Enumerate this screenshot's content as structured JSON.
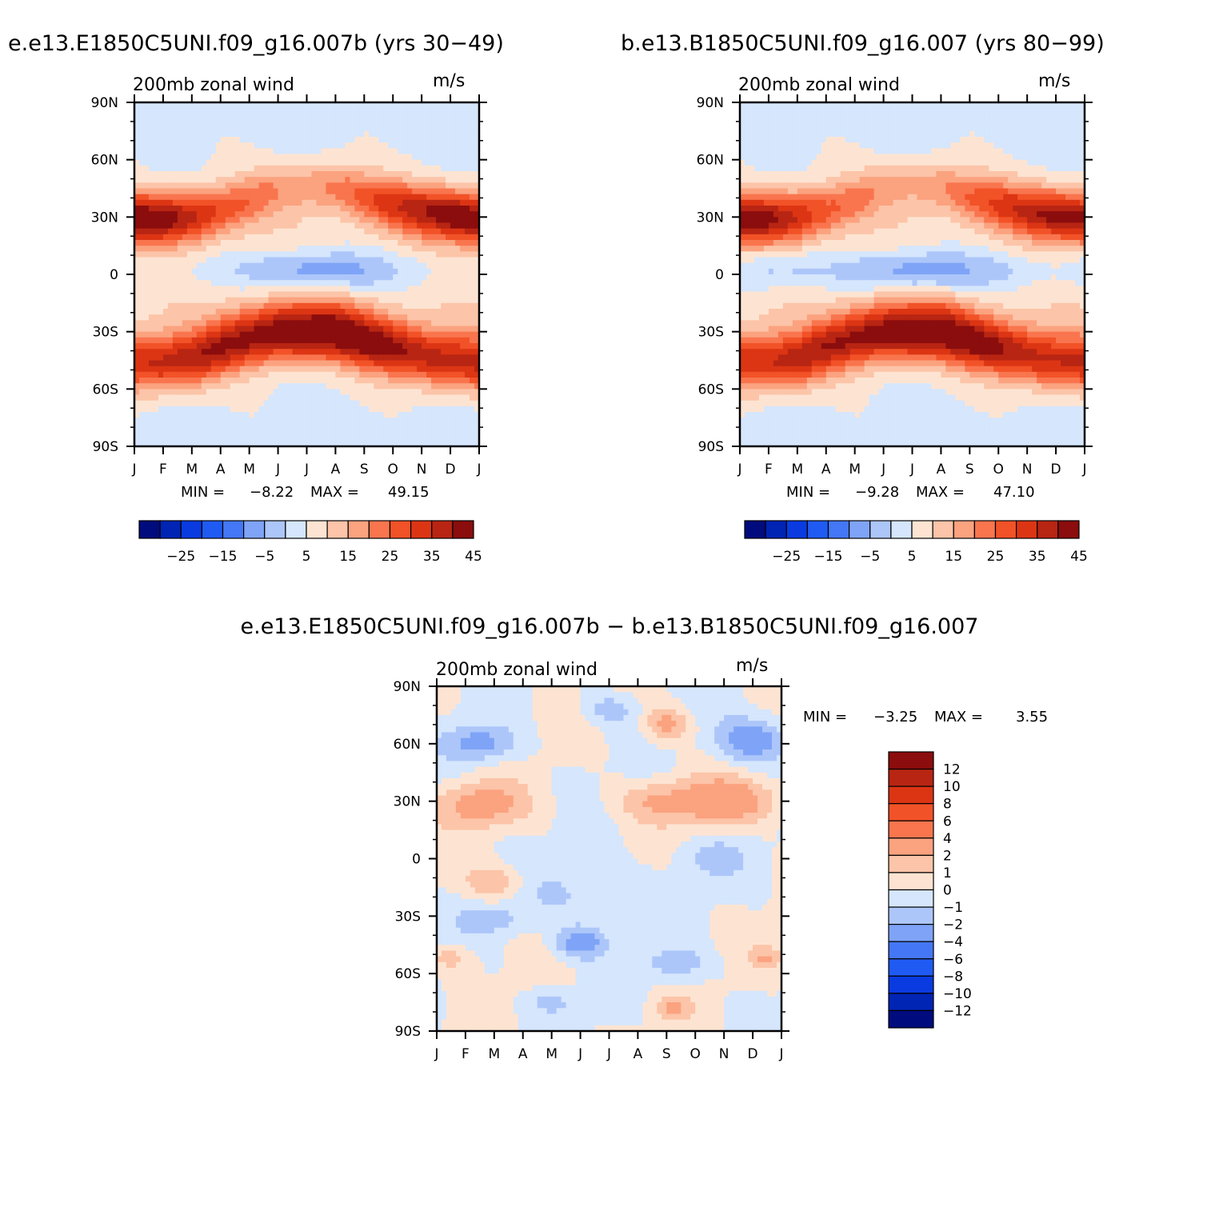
{
  "header": {
    "left_title": "e.e13.E1850C5UNI.f09_g16.007b (yrs 30-49)",
    "right_title": "b.e13.B1850C5UNI.f09_g16.007 (yrs 80-99)",
    "diff_title": "e.e13.E1850C5UNI.f09_g16.007b - b.e13.B1850C5UNI.f09_g16.007"
  },
  "palette": {
    "main": [
      "#000c7d",
      "#0024b4",
      "#0a3be0",
      "#1f5af2",
      "#4477f5",
      "#7fa4f7",
      "#adc6fa",
      "#d5e6fd",
      "#fde4d2",
      "#fcc4a8",
      "#fba27f",
      "#f9754e",
      "#f25227",
      "#dc3514",
      "#b82513",
      "#8b0d0d"
    ],
    "diff": [
      "#000c7d",
      "#0024b4",
      "#0a3be0",
      "#1f5af2",
      "#4477f5",
      "#7fa4f7",
      "#adc6fa",
      "#d5e6fd",
      "#fde4d2",
      "#fcc4a8",
      "#fba27f",
      "#f9754e",
      "#f25227",
      "#dc3514",
      "#b82513",
      "#8b0d0d"
    ]
  },
  "chart_data": [
    {
      "type": "heatmap",
      "id": "left",
      "subtitle_left": "200mb zonal wind",
      "subtitle_right": "m/s",
      "xticklabels": [
        "J",
        "F",
        "M",
        "A",
        "M",
        "J",
        "J",
        "A",
        "S",
        "O",
        "N",
        "D",
        "J"
      ],
      "yticklabels": [
        "90N",
        "60N",
        "30N",
        "0",
        "30S",
        "60S",
        "90S"
      ],
      "xlim": [
        0,
        12
      ],
      "ylim": [
        -90,
        90
      ],
      "levels": [
        -30,
        -25,
        -20,
        -15,
        -10,
        -5,
        0,
        5,
        10,
        15,
        20,
        25,
        30,
        35,
        40,
        45
      ],
      "colorbar_labels": [
        "-25",
        "-15",
        "-5",
        "5",
        "15",
        "25",
        "35",
        "45"
      ],
      "stats": {
        "min_label": "MIN =",
        "min": "-8.22",
        "max_label": "MAX =",
        "max": "49.15"
      },
      "profile": {
        "jetN_peak": [
          47,
          44,
          38,
          30,
          24,
          19,
          19,
          23,
          28,
          33,
          38,
          46,
          47
        ],
        "jetN_lat": [
          29,
          29,
          30,
          33,
          38,
          44,
          46,
          45,
          40,
          36,
          33,
          31,
          29
        ],
        "jetS_peak": [
          36,
          37,
          38,
          40,
          43,
          46,
          48,
          48,
          46,
          43,
          39,
          37,
          36
        ],
        "jetS_lat": [
          -46,
          -46,
          -44,
          -38,
          -33,
          -30,
          -30,
          -30,
          -34,
          -38,
          -42,
          -45,
          -46
        ],
        "eq_min": [
          5,
          5,
          4,
          3,
          0,
          -5,
          -8,
          -7,
          -4,
          0,
          3,
          5,
          5
        ]
      }
    },
    {
      "type": "heatmap",
      "id": "right",
      "subtitle_left": "200mb zonal wind",
      "subtitle_right": "m/s",
      "xticklabels": [
        "J",
        "F",
        "M",
        "A",
        "M",
        "J",
        "J",
        "A",
        "S",
        "O",
        "N",
        "D",
        "J"
      ],
      "yticklabels": [
        "90N",
        "60N",
        "30N",
        "0",
        "30S",
        "60S",
        "90S"
      ],
      "xlim": [
        0,
        12
      ],
      "ylim": [
        -90,
        90
      ],
      "levels": [
        -30,
        -25,
        -20,
        -15,
        -10,
        -5,
        0,
        5,
        10,
        15,
        20,
        25,
        30,
        35,
        40,
        45
      ],
      "colorbar_labels": [
        "-25",
        "-15",
        "-5",
        "5",
        "15",
        "25",
        "35",
        "45"
      ],
      "stats": {
        "min_label": "MIN =",
        "min": "-9.28",
        "max_label": "MAX =",
        "max": "47.10"
      },
      "profile": {
        "jetN_peak": [
          44,
          42,
          36,
          28,
          22,
          17,
          17,
          21,
          26,
          31,
          37,
          43,
          44
        ],
        "jetN_lat": [
          29,
          29,
          30,
          33,
          38,
          44,
          46,
          45,
          40,
          36,
          33,
          31,
          29
        ],
        "jetS_peak": [
          35,
          36,
          37,
          39,
          42,
          45,
          47,
          47,
          45,
          42,
          38,
          36,
          35
        ],
        "jetS_lat": [
          -46,
          -46,
          -44,
          -38,
          -33,
          -30,
          -30,
          -30,
          -34,
          -38,
          -42,
          -45,
          -46
        ],
        "eq_min": [
          1,
          -2,
          -1,
          1,
          -1,
          -5,
          -9,
          -8,
          -4,
          -1,
          2,
          3,
          1
        ]
      }
    },
    {
      "type": "heatmap",
      "id": "diff",
      "subtitle_left": "200mb zonal wind",
      "subtitle_right": "m/s",
      "xticklabels": [
        "J",
        "F",
        "M",
        "A",
        "M",
        "J",
        "J",
        "A",
        "S",
        "O",
        "N",
        "D",
        "J"
      ],
      "yticklabels": [
        "90N",
        "60N",
        "30N",
        "0",
        "30S",
        "60S",
        "90S"
      ],
      "xlim": [
        0,
        12
      ],
      "ylim": [
        -90,
        90
      ],
      "levels": [
        -12,
        -10,
        -8,
        -6,
        -4,
        -2,
        -1,
        0,
        1,
        2,
        4,
        6,
        8,
        10,
        12
      ],
      "colorbar_labels": [
        "12",
        "10",
        "8",
        "6",
        "4",
        "2",
        "1",
        "0",
        "-1",
        "-2",
        "-4",
        "-6",
        "-8",
        "-10",
        "-12"
      ],
      "stats": {
        "min_label": "MIN =",
        "min": "-3.25",
        "max_label": "MAX =",
        "max": "3.55"
      },
      "features": [
        {
          "x": 1.5,
          "lat": 28,
          "amp": 2.6,
          "sx": 1.6,
          "sy": 12
        },
        {
          "x": 10.0,
          "lat": 30,
          "amp": 3.1,
          "sx": 2.0,
          "sy": 12
        },
        {
          "x": 7.5,
          "lat": 30,
          "amp": 1.4,
          "sx": 1.5,
          "sy": 10
        },
        {
          "x": 1.5,
          "lat": 60,
          "amp": -2.6,
          "sx": 1.2,
          "sy": 9
        },
        {
          "x": 11.0,
          "lat": 62,
          "amp": -3.1,
          "sx": 1.3,
          "sy": 12
        },
        {
          "x": 6.0,
          "lat": 78,
          "amp": -1.6,
          "sx": 0.9,
          "sy": 8
        },
        {
          "x": 8.0,
          "lat": 70,
          "amp": 2.5,
          "sx": 0.8,
          "sy": 9
        },
        {
          "x": 5.0,
          "lat": -18,
          "amp": -1.2,
          "sx": 2.0,
          "sy": 16
        },
        {
          "x": 9.5,
          "lat": 0,
          "amp": -1.3,
          "sx": 1.2,
          "sy": 10
        },
        {
          "x": 2.0,
          "lat": -12,
          "amp": 2.1,
          "sx": 1.0,
          "sy": 9
        },
        {
          "x": 5.0,
          "lat": -44,
          "amp": -2.9,
          "sx": 0.9,
          "sy": 8
        },
        {
          "x": 8.3,
          "lat": -55,
          "amp": -1.6,
          "sx": 1.2,
          "sy": 8
        },
        {
          "x": 2.0,
          "lat": -32,
          "amp": -1.2,
          "sx": 1.5,
          "sy": 8
        },
        {
          "x": 8.2,
          "lat": -78,
          "amp": 2.1,
          "sx": 0.6,
          "sy": 6
        },
        {
          "x": 0.5,
          "lat": -52,
          "amp": 1.6,
          "sx": 0.8,
          "sy": 6
        },
        {
          "x": 11.5,
          "lat": -52,
          "amp": 1.8,
          "sx": 0.6,
          "sy": 6
        },
        {
          "x": 4.0,
          "lat": -75,
          "amp": -1.4,
          "sx": 0.8,
          "sy": 6
        }
      ]
    }
  ]
}
